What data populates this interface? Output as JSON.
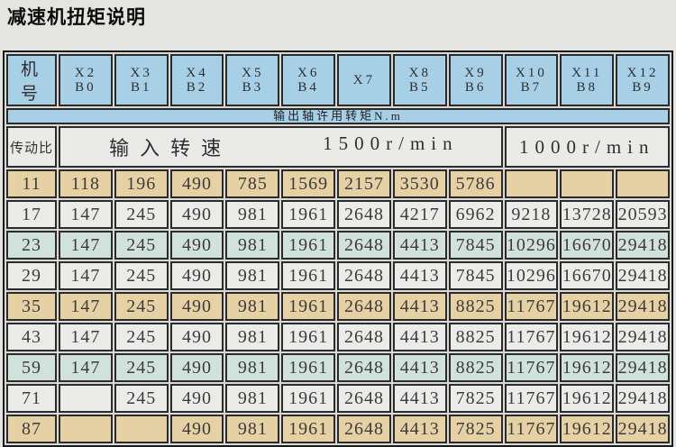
{
  "page": {
    "title": "减速机扭矩说明"
  },
  "colors": {
    "header_blue": "#a7cfe5",
    "row_tan": "#e6d1a4",
    "row_gray": "#ebebe9",
    "row_green": "#d1e1db",
    "speed_row_bg": "#eaeae8"
  },
  "table": {
    "corner_header": "机号",
    "columns": [
      {
        "top": "X2",
        "bottom": "B0"
      },
      {
        "top": "X3",
        "bottom": "B1"
      },
      {
        "top": "X4",
        "bottom": "B2"
      },
      {
        "top": "X5",
        "bottom": "B3"
      },
      {
        "top": "X6",
        "bottom": "B4"
      },
      {
        "top": "X7",
        "bottom": ""
      },
      {
        "top": "X8",
        "bottom": "B5"
      },
      {
        "top": "X9",
        "bottom": "B6"
      },
      {
        "top": "X10",
        "bottom": "B7"
      },
      {
        "top": "X11",
        "bottom": "B8"
      },
      {
        "top": "X12",
        "bottom": "B9"
      }
    ],
    "torque_banner": "输出轴许用转矩N.m",
    "ratio_header": "传动比",
    "input_speed_label": "输入转速",
    "speed_1500": "1500r/min",
    "speed_1000": "1000r/min",
    "rows": [
      {
        "ratio": "11",
        "tone": "tan",
        "cells": [
          "118",
          "196",
          "490",
          "785",
          "1569",
          "2157",
          "3530",
          "5786",
          "",
          "",
          ""
        ]
      },
      {
        "ratio": "17",
        "tone": "gray",
        "cells": [
          "147",
          "245",
          "490",
          "981",
          "1961",
          "2648",
          "4217",
          "6962",
          "9218",
          "13728",
          "20593"
        ]
      },
      {
        "ratio": "23",
        "tone": "green",
        "cells": [
          "147",
          "245",
          "490",
          "981",
          "1961",
          "2648",
          "4413",
          "7845",
          "10296",
          "16670",
          "29418"
        ]
      },
      {
        "ratio": "29",
        "tone": "gray",
        "cells": [
          "147",
          "245",
          "490",
          "981",
          "1961",
          "2648",
          "4413",
          "7845",
          "10296",
          "16670",
          "29418"
        ]
      },
      {
        "ratio": "35",
        "tone": "tan",
        "cells": [
          "147",
          "245",
          "490",
          "981",
          "1961",
          "2648",
          "4413",
          "8825",
          "11767",
          "19612",
          "29418"
        ]
      },
      {
        "ratio": "43",
        "tone": "gray",
        "cells": [
          "147",
          "245",
          "490",
          "981",
          "1961",
          "2648",
          "4413",
          "8825",
          "11767",
          "19612",
          "29418"
        ]
      },
      {
        "ratio": "59",
        "tone": "green",
        "cells": [
          "147",
          "245",
          "490",
          "981",
          "1961",
          "2648",
          "4413",
          "8825",
          "11767",
          "19612",
          "29418"
        ]
      },
      {
        "ratio": "71",
        "tone": "gray",
        "cells": [
          "",
          "245",
          "490",
          "981",
          "1961",
          "2648",
          "4413",
          "7825",
          "11767",
          "19612",
          "29418"
        ]
      },
      {
        "ratio": "87",
        "tone": "tan",
        "cells": [
          "",
          "",
          "490",
          "981",
          "1961",
          "2648",
          "4413",
          "7825",
          "11767",
          "19612",
          "29418"
        ]
      }
    ]
  }
}
